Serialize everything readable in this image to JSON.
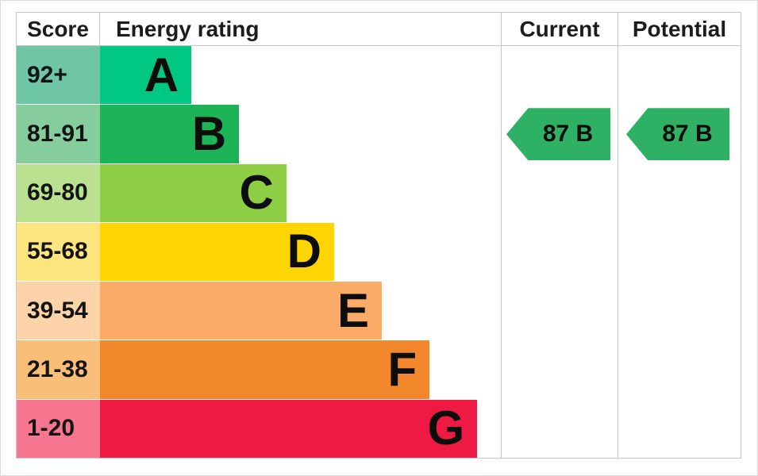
{
  "chart_data": {
    "type": "bar",
    "orientation": "horizontal-staircase",
    "description": "Energy performance certificate rating chart",
    "columns": [
      "Score",
      "Energy rating",
      "Current",
      "Potential"
    ],
    "grid": "off",
    "bands": [
      {
        "rating": "A",
        "score_range": "92+",
        "color": "#00c782",
        "score_bg": "#6fc6a5",
        "bar_width_pct": 22.8
      },
      {
        "rating": "B",
        "score_range": "81-91",
        "color": "#1db458",
        "score_bg": "#85cd9d",
        "bar_width_pct": 34.7
      },
      {
        "rating": "C",
        "score_range": "69-80",
        "color": "#8dce45",
        "score_bg": "#bae190",
        "bar_width_pct": 46.5
      },
      {
        "rating": "D",
        "score_range": "55-68",
        "color": "#fed401",
        "score_bg": "#ffe57e",
        "bar_width_pct": 58.4
      },
      {
        "rating": "E",
        "score_range": "39-54",
        "color": "#fbab66",
        "score_bg": "#fdd4aa",
        "bar_width_pct": 70.3
      },
      {
        "rating": "F",
        "score_range": "21-38",
        "color": "#f2872c",
        "score_bg": "#f9bf78",
        "bar_width_pct": 82.2
      },
      {
        "rating": "G",
        "score_range": "1-20",
        "color": "#ef1a44",
        "score_bg": "#f5768e",
        "bar_width_pct": 94.1
      }
    ],
    "current": {
      "score": 87,
      "rating": "B",
      "label": "87 B",
      "arrow_color": "#2eb164"
    },
    "potential": {
      "score": 87,
      "rating": "B",
      "label": "87 B",
      "arrow_color": "#2eb164"
    },
    "border_color": "#c6c6c6"
  }
}
